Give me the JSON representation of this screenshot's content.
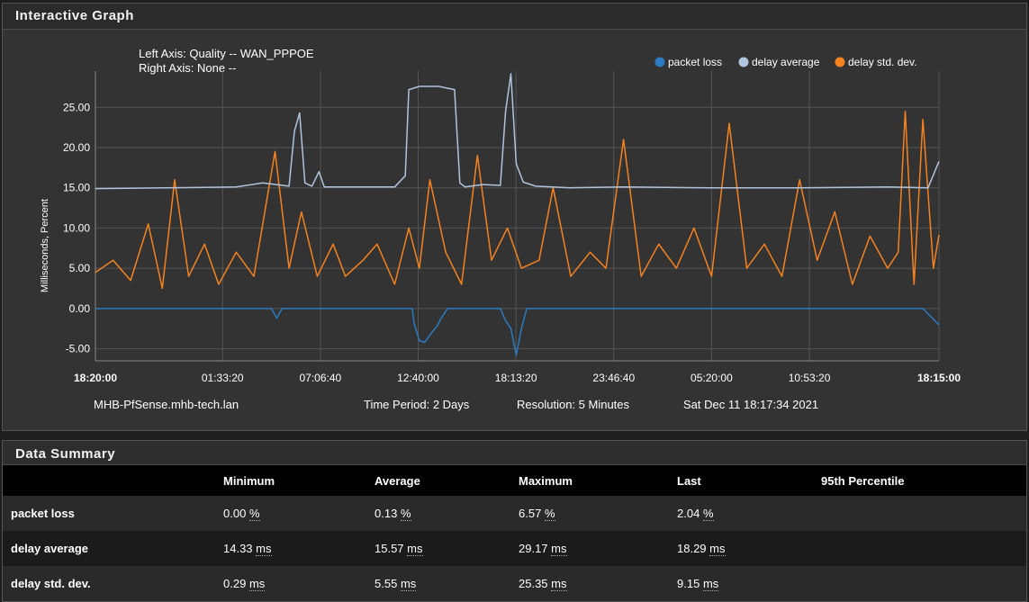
{
  "graph_panel": {
    "title": "Interactive Graph"
  },
  "graph_info": {
    "left_axis": "Left Axis: Quality -- WAN_PPPOE",
    "right_axis": "Right Axis: None --",
    "host": "MHB-PfSense.mhb-tech.lan",
    "time_period": "Time Period: 2 Days",
    "resolution": "Resolution: 5 Minutes",
    "timestamp": "Sat Dec 11 18:17:34 2021"
  },
  "chart_data": {
    "type": "line",
    "ylabel": "Milliseconds, Percent",
    "ylim": [
      -6.5,
      29.5
    ],
    "y_ticks": [
      "25.00",
      "20.00",
      "15.00",
      "10.00",
      "5.00",
      "0.00",
      "-5.00"
    ],
    "y_tick_values": [
      25,
      20,
      15,
      10,
      5,
      0,
      -5
    ],
    "x_ticks": [
      "18:20:00",
      "01:33:20",
      "07:06:40",
      "12:40:00",
      "18:13:20",
      "23:46:40",
      "05:20:00",
      "10:53:20",
      "18:15:00"
    ],
    "x_tick_hours": [
      0,
      7.222,
      12.778,
      18.333,
      23.889,
      29.444,
      35.0,
      40.556,
      47.917
    ],
    "x_range_hours": [
      0,
      47.917
    ],
    "grid": true,
    "legend_position": "top-right",
    "series": [
      {
        "name": "packet loss",
        "color": "#2b7bc1",
        "x_hours": [
          0,
          10,
          10.3,
          10.6,
          10.9,
          18,
          18.1,
          18.4,
          18.7,
          19.1,
          19.4,
          19.7,
          20,
          20.3,
          23,
          23.3,
          23.6,
          23.9,
          24.2,
          24.5,
          29,
          47,
          47.917
        ],
        "values": [
          0,
          0,
          -1.2,
          0,
          0,
          0,
          -1.8,
          -4,
          -4.2,
          -3,
          -2.2,
          -1,
          0,
          0,
          0,
          -1.5,
          -2.5,
          -5.8,
          -2.5,
          0,
          0,
          0,
          -2.04
        ]
      },
      {
        "name": "delay average",
        "color": "#b0c4de",
        "x_hours": [
          0,
          4,
          8,
          9.5,
          11,
          11.3,
          11.6,
          11.9,
          12.3,
          12.7,
          13,
          14,
          17,
          17.6,
          17.8,
          18.4,
          19.5,
          20.4,
          20.7,
          21,
          22,
          23,
          23.3,
          23.6,
          23.9,
          24.3,
          25,
          27,
          30,
          35,
          40,
          45,
          47.3,
          47.917
        ],
        "values": [
          14.9,
          15,
          15.1,
          15.6,
          15.2,
          22,
          24.3,
          15.6,
          15.2,
          17,
          15.1,
          15.1,
          15.1,
          16.5,
          27.2,
          27.6,
          27.6,
          27.2,
          15.6,
          15.1,
          15.4,
          15.3,
          24.5,
          29.17,
          18,
          15.7,
          15.2,
          15.0,
          15.1,
          15.0,
          15.0,
          15.1,
          15.0,
          18.29
        ]
      },
      {
        "name": "delay std. dev.",
        "color": "#f5821f",
        "x_hours": [
          0,
          1,
          2,
          3,
          3.8,
          4.5,
          5.3,
          6.2,
          7,
          8,
          9,
          10.2,
          11,
          11.7,
          12.6,
          13.5,
          14.2,
          15.2,
          16,
          17,
          17.8,
          18.4,
          19,
          19.9,
          20.8,
          21.7,
          22.5,
          23.4,
          24.2,
          25.2,
          26,
          27,
          28.1,
          29,
          30,
          31,
          32,
          33,
          34,
          35,
          36,
          37,
          38,
          39,
          40,
          41,
          42,
          43,
          44,
          45,
          45.6,
          46,
          46.5,
          47,
          47.6,
          47.917
        ],
        "values": [
          4.5,
          6,
          3.5,
          10.5,
          2.5,
          16,
          4,
          8,
          3,
          7,
          4,
          19.5,
          5,
          12,
          4,
          8,
          4,
          6,
          8,
          3,
          10,
          5,
          16,
          7,
          3,
          19,
          6,
          10,
          5,
          6,
          15,
          4,
          7,
          5,
          21,
          4,
          8,
          5,
          10,
          4,
          23,
          5,
          8,
          4,
          16,
          6,
          12,
          3,
          9,
          5,
          7,
          24.5,
          3,
          23.5,
          5,
          9.15
        ]
      }
    ]
  },
  "summary": {
    "title": "Data Summary",
    "headers": [
      "Minimum",
      "Average",
      "Maximum",
      "Last",
      "95th Percentile"
    ],
    "rows": [
      {
        "name": "packet loss",
        "min": "0.00",
        "avg": "0.13",
        "max": "6.57",
        "last": "2.04",
        "unit": "%"
      },
      {
        "name": "delay average",
        "min": "14.33",
        "avg": "15.57",
        "max": "29.17",
        "last": "18.29",
        "unit": "ms"
      },
      {
        "name": "delay std. dev.",
        "min": "0.29",
        "avg": "5.55",
        "max": "25.35",
        "last": "9.15",
        "unit": "ms"
      }
    ]
  }
}
